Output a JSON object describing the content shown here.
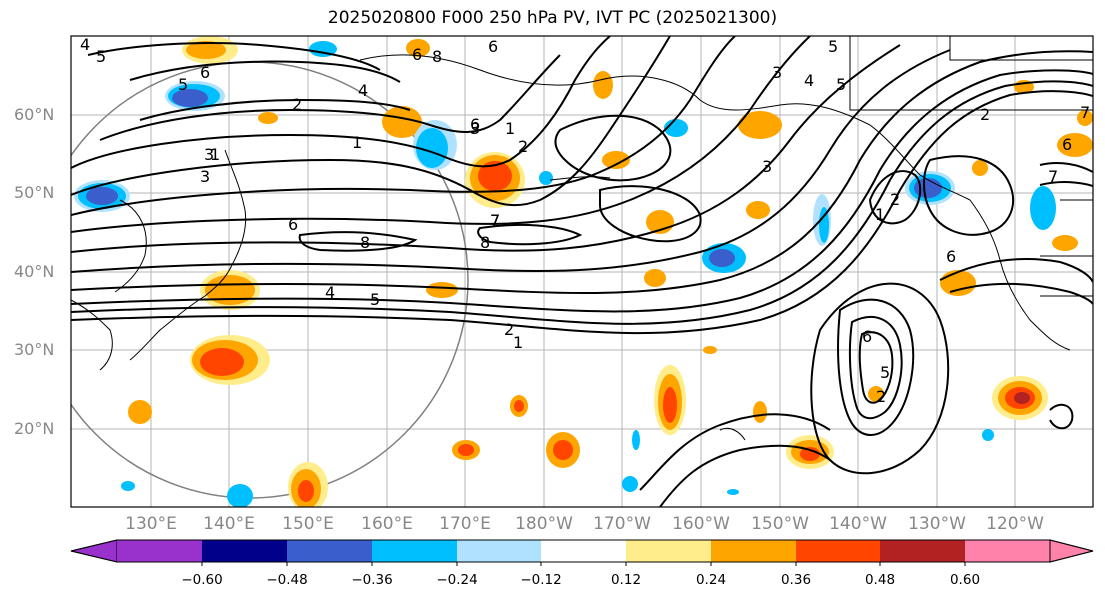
{
  "title": "2025020800 F000 250 hPa PV, IVT PC (2025021300)",
  "map": {
    "lat_labels": [
      "60°N",
      "50°N",
      "40°N",
      "30°N",
      "20°N"
    ],
    "lon_labels": [
      "130°E",
      "140°E",
      "150°E",
      "160°E",
      "170°E",
      "180°W",
      "170°W",
      "160°W",
      "150°W",
      "140°W",
      "130°W",
      "120°W"
    ]
  },
  "colorbar": {
    "ticks": [
      "−0.60",
      "−0.48",
      "−0.36",
      "−0.24",
      "−0.12",
      "0.12",
      "0.24",
      "0.36",
      "0.48",
      "0.60"
    ],
    "colors": {
      "below": "#9932cc",
      "c1": "#00008b",
      "c2": "#3a5fcd",
      "c3": "#00bfff",
      "c4": "#b0e2ff",
      "c5": "#ffffff",
      "c6": "#ffec8b",
      "c7": "#ffa500",
      "c8": "#ff4500",
      "c9": "#b22222",
      "above": "#ff82ab"
    }
  },
  "contour_labels": [
    "4",
    "5",
    "5",
    "6",
    "2",
    "4",
    "3",
    "1",
    "6",
    "8",
    "7",
    "6",
    "8",
    "8",
    "6",
    "3",
    "1",
    "2",
    "7",
    "3",
    "4",
    "5",
    "5",
    "7",
    "2",
    "1",
    "3",
    "2",
    "6",
    "7",
    "4",
    "5",
    "6",
    "2",
    "1",
    "6",
    "5",
    "2",
    "3",
    "1",
    "6"
  ]
}
